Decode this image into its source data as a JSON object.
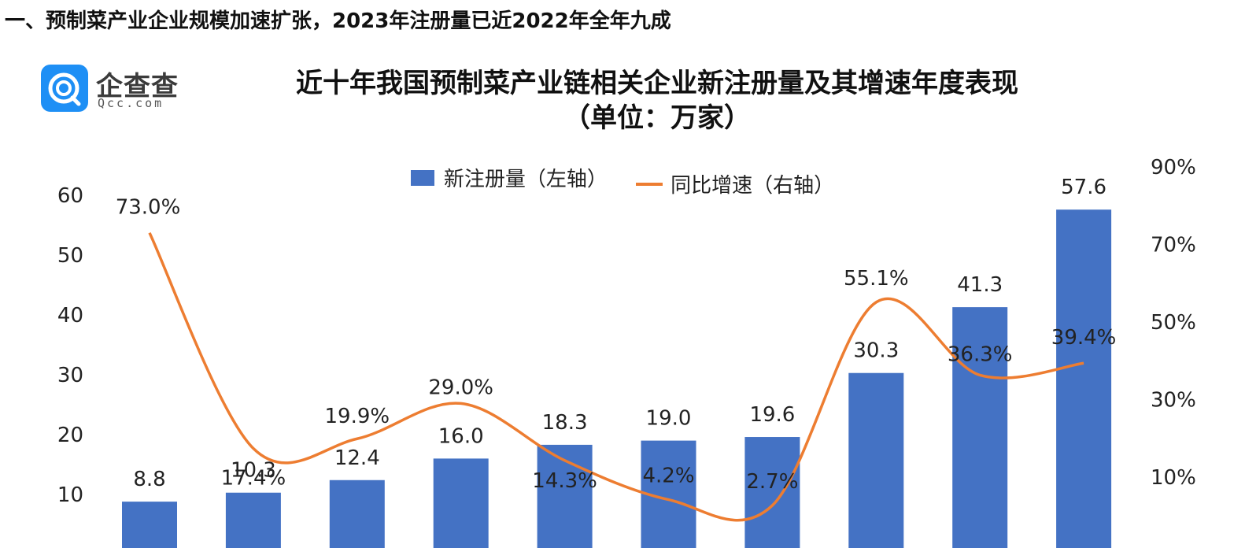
{
  "header": {
    "section_heading": "一、预制菜产业企业规模加速扩张，2023年注册量已近2022年全年九成"
  },
  "logo": {
    "brand_text": "企查查",
    "domain_text": "Qcc.com"
  },
  "colors": {
    "bar": "#4472c4",
    "line": "#ed7d31",
    "brand": "#1e8ff5"
  },
  "chart_data": {
    "type": "bar",
    "title": "近十年我国预制菜产业链相关企业新注册量及其增速年度表现",
    "subtitle": "（单位：万家）",
    "legend_position": "top",
    "grid": false,
    "left_axis": {
      "ticks": [
        10,
        20,
        30,
        40,
        50,
        60
      ],
      "range": [
        0,
        60
      ]
    },
    "right_axis": {
      "ticks": [
        "10%",
        "30%",
        "50%",
        "70%",
        "90%"
      ],
      "range": [
        -10,
        90
      ]
    },
    "series": [
      {
        "name": "新注册量（左轴）",
        "type": "bar",
        "axis": "left",
        "values": [
          8.8,
          10.3,
          12.4,
          16.0,
          18.3,
          19.0,
          19.6,
          30.3,
          41.3,
          57.6
        ],
        "labels": [
          "8.8",
          "10.3",
          "12.4",
          "16.0",
          "18.3",
          "19.0",
          "19.6",
          "30.3",
          "41.3",
          "57.6"
        ]
      },
      {
        "name": "同比增速（右轴）",
        "type": "line",
        "axis": "right",
        "values": [
          73.0,
          17.4,
          19.9,
          29.0,
          14.3,
          4.2,
          2.7,
          55.1,
          36.3,
          39.4
        ],
        "labels": [
          "73.0%",
          "17.4%",
          "19.9%",
          "29.0%",
          "14.3%",
          "4.2%",
          "2.7%",
          "55.1%",
          "36.3%",
          "39.4%"
        ]
      }
    ]
  }
}
